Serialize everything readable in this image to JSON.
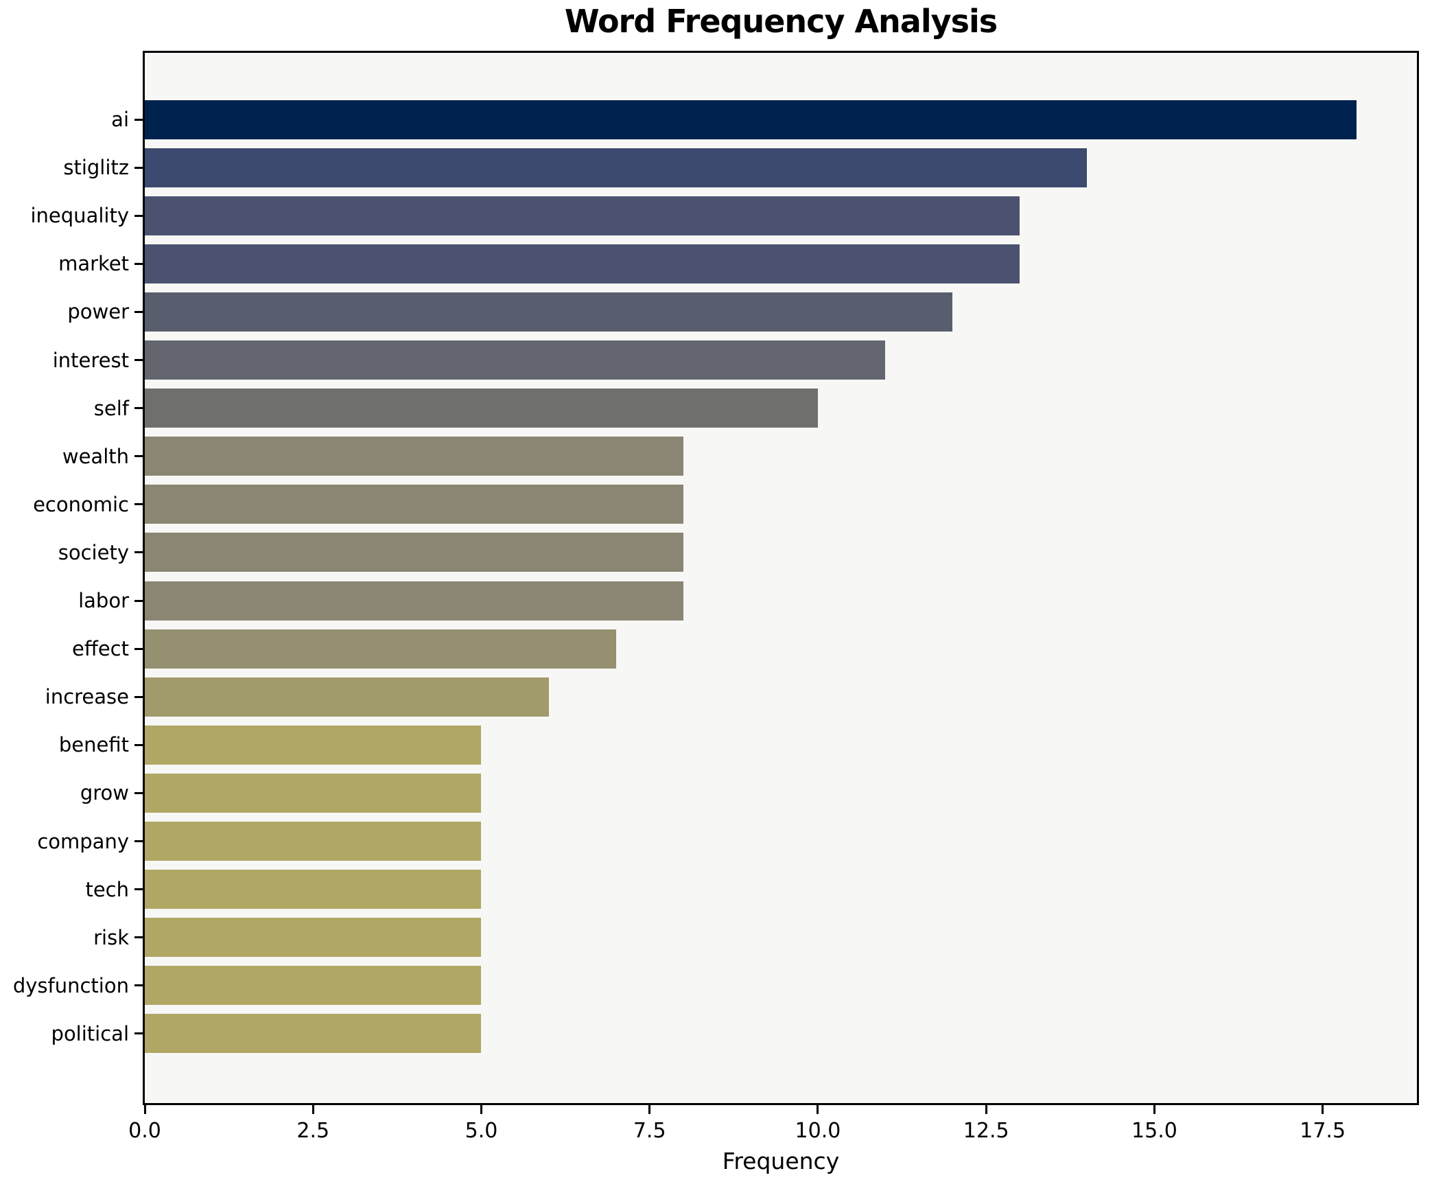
{
  "chart_data": {
    "type": "bar",
    "orientation": "horizontal",
    "title": "Word Frequency Analysis",
    "xlabel": "Frequency",
    "ylabel": "",
    "categories": [
      "ai",
      "stiglitz",
      "inequality",
      "market",
      "power",
      "interest",
      "self",
      "wealth",
      "economic",
      "society",
      "labor",
      "effect",
      "increase",
      "benefit",
      "grow",
      "company",
      "tech",
      "risk",
      "dysfunction",
      "political"
    ],
    "values": [
      18,
      14,
      13,
      13,
      12,
      11,
      10,
      8,
      8,
      8,
      8,
      7,
      6,
      5,
      5,
      5,
      5,
      5,
      5,
      5
    ],
    "xlim": [
      0,
      18.9
    ],
    "xticks": [
      0,
      2.5,
      5,
      7.5,
      10,
      12.5,
      15,
      17.5
    ],
    "xtick_labels": [
      "0.0",
      "2.5",
      "5.0",
      "7.5",
      "10.0",
      "12.5",
      "15.0",
      "17.5"
    ],
    "grid": false,
    "legend": null,
    "bar_colors": [
      "#00224e",
      "#3b4a6e",
      "#4b5270",
      "#4b5270",
      "#585e6e",
      "#63666e",
      "#6f706e",
      "#8a8673",
      "#8a8673",
      "#8a8673",
      "#8a8673",
      "#95906f",
      "#a19a6b",
      "#b1a764",
      "#b1a764",
      "#b1a764",
      "#b1a764",
      "#b1a764",
      "#b1a764",
      "#b1a764"
    ],
    "colors": {
      "figure_bg": "#ffffff",
      "plot_bg": "#f7f7f5",
      "spine": "#000000",
      "text": "#000000"
    }
  }
}
